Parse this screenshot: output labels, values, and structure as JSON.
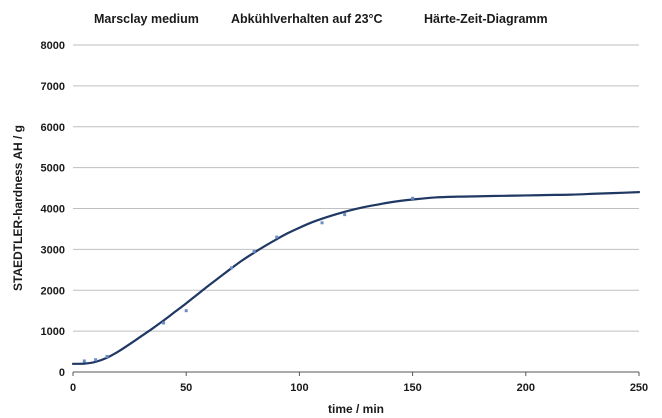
{
  "chart_data": {
    "type": "line",
    "title_parts": [
      "Marsclay medium",
      "Abkühlverhalten auf 23°C",
      "Härte-Zeit-Diagramm"
    ],
    "xlabel": "time / min",
    "ylabel": "STAEDTLER-hardness  AH / g",
    "xlim": [
      0,
      250
    ],
    "ylim": [
      0,
      8000
    ],
    "x_ticks": [
      0,
      50,
      100,
      150,
      200,
      250
    ],
    "y_ticks": [
      0,
      1000,
      2000,
      3000,
      4000,
      5000,
      6000,
      7000,
      8000
    ],
    "grid": "horizontal",
    "legend": "none",
    "colors": {
      "line": "#1f3864",
      "markers": "#6b8cc7",
      "grid": "#bfbfbf",
      "axis": "#555555"
    },
    "series": [
      {
        "style": "line",
        "x": [
          0,
          5,
          10,
          15,
          20,
          25,
          30,
          35,
          40,
          45,
          50,
          55,
          60,
          65,
          70,
          75,
          80,
          85,
          90,
          95,
          100,
          105,
          110,
          115,
          120,
          125,
          130,
          135,
          140,
          145,
          150,
          160,
          170,
          180,
          190,
          200,
          210,
          220,
          230,
          240,
          250
        ],
        "values": [
          200,
          205,
          250,
          350,
          500,
          680,
          870,
          1060,
          1260,
          1470,
          1680,
          1900,
          2120,
          2330,
          2540,
          2740,
          2920,
          3090,
          3250,
          3400,
          3530,
          3650,
          3750,
          3840,
          3920,
          3990,
          4050,
          4100,
          4150,
          4190,
          4220,
          4270,
          4290,
          4300,
          4310,
          4320,
          4330,
          4340,
          4360,
          4380,
          4400
        ]
      },
      {
        "style": "markers",
        "x": [
          5,
          10,
          15,
          40,
          50,
          70,
          80,
          90,
          110,
          120,
          150
        ],
        "values": [
          270,
          300,
          380,
          1200,
          1500,
          2550,
          2950,
          3300,
          3650,
          3850,
          4250
        ]
      }
    ]
  }
}
